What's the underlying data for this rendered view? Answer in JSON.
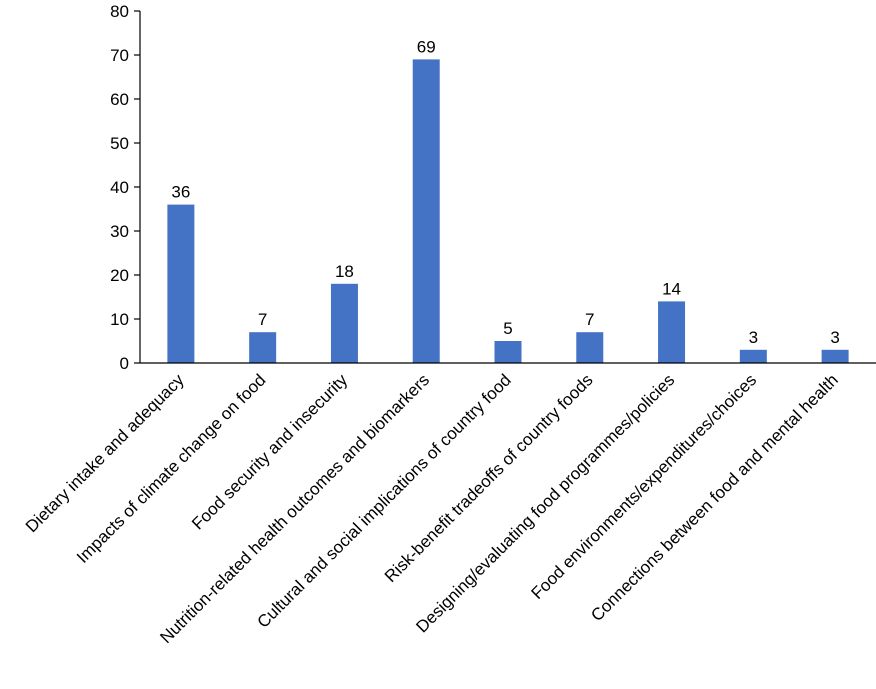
{
  "chart_data": {
    "type": "bar",
    "title": "",
    "xlabel": "",
    "ylabel": "",
    "ylim": [
      0,
      80
    ],
    "yticks": [
      0,
      10,
      20,
      30,
      40,
      50,
      60,
      70,
      80
    ],
    "grid": false,
    "legend": "none",
    "bar_color": "#4472C4",
    "categories": [
      "Dietary intake and adequacy",
      "Impacts of climate change on food",
      "Food security and insecurity",
      "Nutrition-related health outcomes and biomarkers",
      "Cultural and social implications of country food",
      "Risk-benefit tradeoffs of country foods",
      "Designing/evaluating food programmes/policies",
      "Food environments/expenditures/choices",
      "Connections between food and mental health"
    ],
    "values": [
      36,
      7,
      18,
      69,
      5,
      7,
      14,
      3,
      3
    ]
  }
}
